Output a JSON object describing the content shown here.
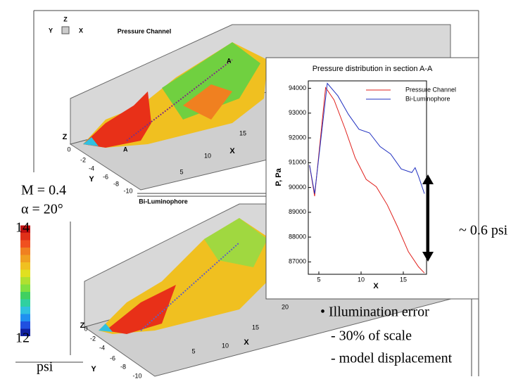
{
  "chart_data": {
    "type": "line",
    "title": "Pressure distribution in section A-A",
    "x_label": "X",
    "y_label": "P, Pa",
    "xlim": [
      3.75,
      17.75
    ],
    "xticks": [
      5,
      10,
      15
    ],
    "ylim": [
      86500,
      94300
    ],
    "yticks": [
      87000,
      88000,
      89000,
      90000,
      91000,
      92000,
      93000,
      94000
    ],
    "legend": "upper right",
    "series": [
      {
        "name": "Pressure Channel",
        "color": "#e0201c",
        "x": [
          3.9,
          4.5,
          5.8,
          6.8,
          8.1,
          9.3,
          10.6,
          11.8,
          13.1,
          14.3,
          15.6,
          16.8,
          17.5
        ],
        "values": [
          90900,
          89650,
          94030,
          93530,
          92370,
          91200,
          90330,
          90030,
          89300,
          88430,
          87410,
          86800,
          86550
        ]
      },
      {
        "name": "Bi-Luminophore",
        "color": "#2030c0",
        "x": [
          3.9,
          4.5,
          6.0,
          7.25,
          8.5,
          9.75,
          11.0,
          12.25,
          13.5,
          14.75,
          16.0,
          16.4,
          16.8,
          17.5
        ],
        "values": [
          90900,
          89750,
          94200,
          93700,
          92950,
          92350,
          92200,
          91650,
          91350,
          90750,
          90600,
          90800,
          90450,
          89750
        ]
      }
    ],
    "annotation": "~ 0.6 psi"
  },
  "slide": {
    "flow": [
      "M = 0.4",
      "α = 20°"
    ],
    "colorbar": {
      "max": "14",
      "min": "12",
      "unit": "psi"
    },
    "bullets": [
      "• Illumination error",
      "- 30% of scale",
      "- model displacement"
    ],
    "triad": [
      "Z",
      "Y",
      "X"
    ],
    "plots": [
      {
        "title": "Pressure Channel",
        "section_labels": [
          "A",
          "A"
        ],
        "axis_labels": [
          "Z",
          "Y",
          "X"
        ],
        "y_ticks": [
          "0",
          "-2",
          "-4",
          "-6",
          "-8",
          "-10"
        ],
        "x_ticks": [
          "5",
          "10",
          "15"
        ]
      },
      {
        "title": "Bi-Luminophore",
        "axis_labels": [
          "Z",
          "Y",
          "X"
        ],
        "y_ticks": [
          "0",
          "-2",
          "-4",
          "-6",
          "-8",
          "-10"
        ],
        "x_ticks": [
          "5",
          "10",
          "15",
          "20"
        ]
      }
    ]
  }
}
